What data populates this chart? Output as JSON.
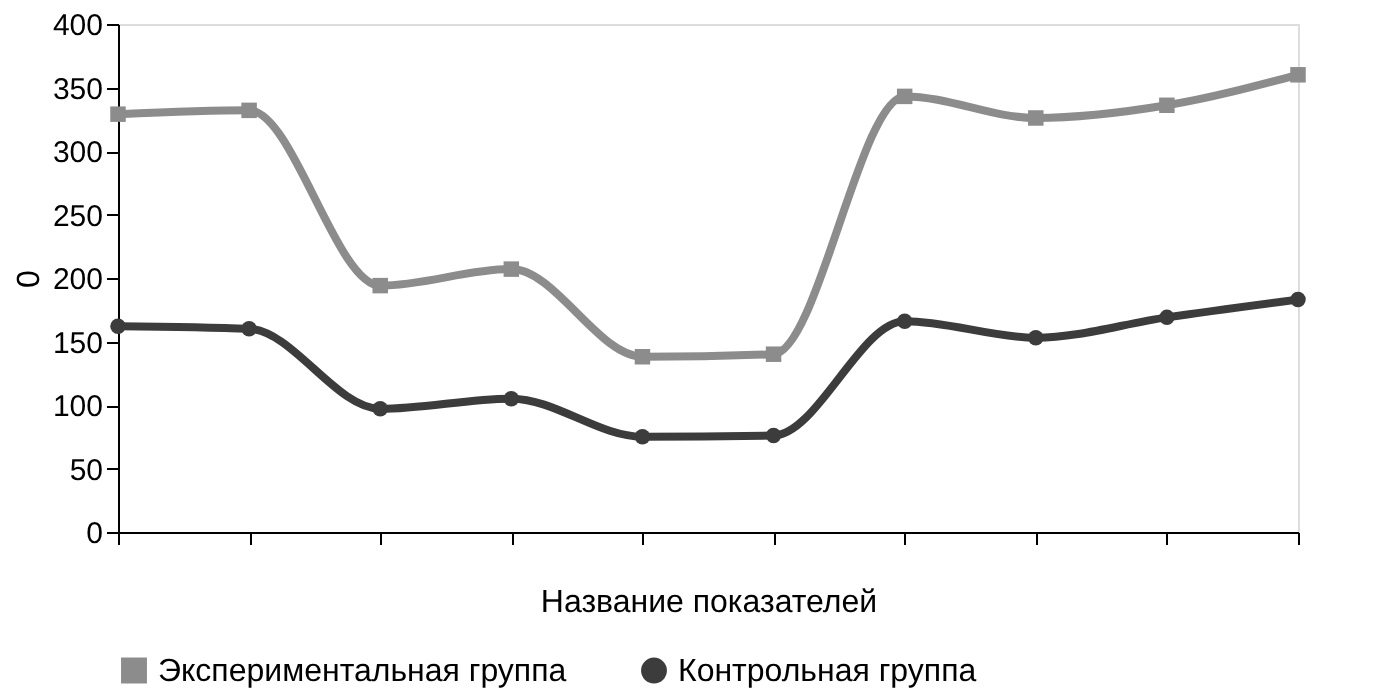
{
  "chart_data": {
    "type": "line",
    "xlabel": "Название показателей",
    "ylabel": "0",
    "categories": [
      null,
      null,
      null,
      null,
      null,
      null,
      null,
      null,
      null,
      null
    ],
    "series": [
      {
        "name": "Экспериментальная группа",
        "color": "#8c8c8c",
        "marker": "square",
        "values": [
          329,
          332,
          194,
          207,
          138,
          140,
          343,
          326,
          336,
          360
        ]
      },
      {
        "name": "Контрольная группа",
        "color": "#3c3c3c",
        "marker": "circle",
        "values": [
          162,
          160,
          97,
          105,
          75,
          76,
          166,
          153,
          169,
          183
        ]
      }
    ],
    "ylim": [
      0,
      400
    ],
    "yticks": [
      0,
      50,
      100,
      150,
      200,
      250,
      300,
      350,
      400
    ],
    "grid": false,
    "legend": "bottom",
    "tick_labels": "y"
  }
}
